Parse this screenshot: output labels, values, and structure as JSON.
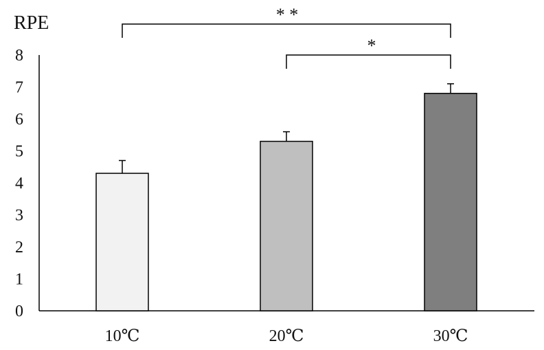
{
  "chart_data": {
    "type": "bar",
    "title": "",
    "ylabel": "RPE",
    "xlabel": "",
    "categories": [
      "10℃",
      "20℃",
      "30℃"
    ],
    "values": [
      4.3,
      5.3,
      6.8
    ],
    "errors": [
      0.4,
      0.3,
      0.3
    ],
    "ylim": [
      0,
      8
    ],
    "yticks": [
      0,
      1,
      2,
      3,
      4,
      5,
      6,
      7,
      8
    ],
    "grid": false,
    "colors": [
      "#f2f2f2",
      "#bfbfbf",
      "#7f7f7f"
    ],
    "significance": [
      {
        "from": 0,
        "to": 2,
        "label": "* *"
      },
      {
        "from": 1,
        "to": 2,
        "label": "*"
      }
    ]
  }
}
